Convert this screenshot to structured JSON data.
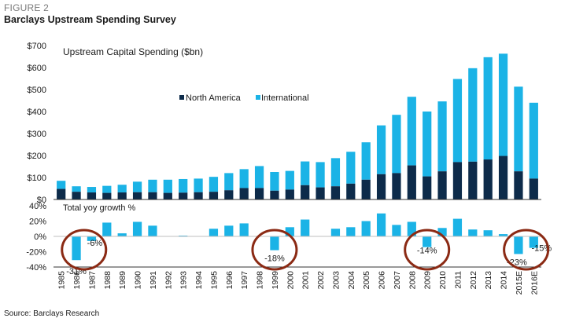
{
  "figure_label": "FIGURE 2",
  "title": "Barclays Upstream Spending Survey",
  "source": "Source: Barclays Research",
  "colors": {
    "north_america": "#0d2b4a",
    "international": "#1bb3e6",
    "growth": "#1bb3e6",
    "highlight_circle": "#8b2a14",
    "gridline": "#bfbfbf",
    "axis": "#333333"
  },
  "chart_data": [
    {
      "type": "bar",
      "stacked": true,
      "title": "Upstream Capital Spending ($bn)",
      "categories": [
        "1985",
        "1986",
        "1987",
        "1988",
        "1989",
        "1990",
        "1991",
        "1992",
        "1993",
        "1994",
        "1995",
        "1996",
        "1997",
        "1998",
        "1999",
        "2000",
        "2001",
        "2002",
        "2003",
        "2004",
        "2005",
        "2006",
        "2007",
        "2008",
        "2009",
        "2010",
        "2011",
        "2012",
        "2013",
        "2014",
        "2015E",
        "2016E"
      ],
      "series": [
        {
          "name": "North America",
          "values": [
            48,
            35,
            32,
            30,
            32,
            33,
            33,
            30,
            31,
            33,
            35,
            42,
            52,
            52,
            40,
            45,
            65,
            55,
            60,
            72,
            90,
            115,
            120,
            155,
            105,
            128,
            170,
            172,
            182,
            198,
            128,
            95
          ]
        },
        {
          "name": "International",
          "values": [
            37,
            25,
            25,
            32,
            35,
            48,
            57,
            60,
            62,
            62,
            68,
            78,
            86,
            100,
            85,
            85,
            108,
            115,
            128,
            145,
            170,
            222,
            265,
            312,
            295,
            318,
            378,
            425,
            465,
            465,
            385,
            345
          ]
        }
      ],
      "ylim": [
        0,
        700
      ],
      "yticks": [
        "$700",
        "$600",
        "$500",
        "$400",
        "$300",
        "$200",
        "$100",
        "$0"
      ],
      "legend": "center",
      "grid": false
    },
    {
      "type": "bar",
      "title": "Total yoy growth %",
      "categories": [
        "1985",
        "1986",
        "1987",
        "1988",
        "1989",
        "1990",
        "1991",
        "1992",
        "1993",
        "1994",
        "1995",
        "1996",
        "1997",
        "1998",
        "1999",
        "2000",
        "2001",
        "2002",
        "2003",
        "2004",
        "2005",
        "2006",
        "2007",
        "2008",
        "2009",
        "2010",
        "2011",
        "2012",
        "2013",
        "2014",
        "2015E",
        "2016E"
      ],
      "values": [
        0,
        -31,
        -6,
        18,
        4,
        19,
        14,
        0,
        1,
        0,
        10,
        14,
        17,
        0,
        -18,
        12,
        22,
        0,
        10,
        12,
        20,
        30,
        15,
        19,
        -14,
        11,
        23,
        9,
        8,
        3,
        -23,
        -15
      ],
      "ylim": [
        -40,
        40
      ],
      "yticks": [
        "40%",
        "20%",
        "0%",
        "-20%",
        "-40%"
      ],
      "annotations": [
        "-31%",
        "-6%",
        "-18%",
        "-14%",
        "-23%",
        "-15%"
      ],
      "grid": false
    }
  ]
}
